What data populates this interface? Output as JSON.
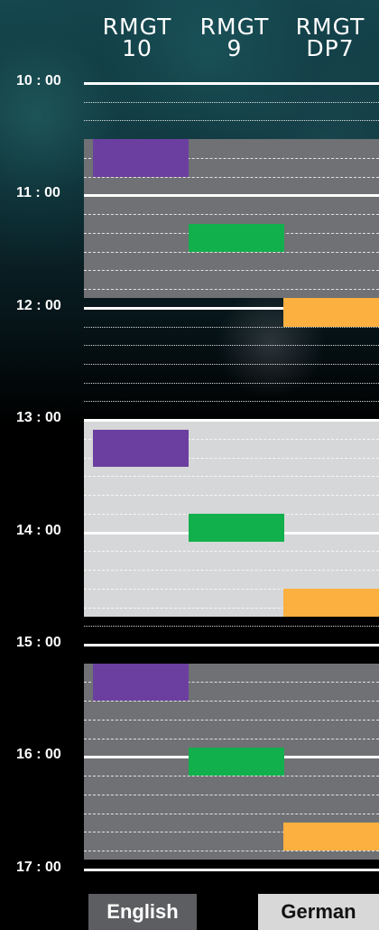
{
  "columns": [
    {
      "line1": "RMGT",
      "line2": "10"
    },
    {
      "line1": "RMGT",
      "line2": "9"
    },
    {
      "line1": "RMGT",
      "line2": "DP7"
    }
  ],
  "times": [
    "10 : 00",
    "11 : 00",
    "12 : 00",
    "13 : 00",
    "14 : 00",
    "15 : 00",
    "16 : 00",
    "17 : 00"
  ],
  "colors": {
    "purple": "#6b3fa0",
    "green": "#12b04d",
    "orange": "#fbb040",
    "session_dark": "#707174",
    "session_light": "#d6d7d8"
  },
  "sessions": [
    {
      "start": "10:30",
      "end": "11:55",
      "shade": "dark"
    },
    {
      "start": "13:00",
      "end": "14:45",
      "shade": "light"
    },
    {
      "start": "15:10",
      "end": "16:55",
      "shade": "dark"
    }
  ],
  "events": [
    {
      "machine": "RMGT 10",
      "start": "10:30",
      "end": "10:50",
      "color": "purple"
    },
    {
      "machine": "RMGT 9",
      "start": "11:15",
      "end": "11:30",
      "color": "green"
    },
    {
      "machine": "RMGT DP7",
      "start": "11:55",
      "end": "12:10",
      "color": "orange"
    },
    {
      "machine": "RMGT 10",
      "start": "13:05",
      "end": "13:25",
      "color": "purple"
    },
    {
      "machine": "RMGT 9",
      "start": "13:50",
      "end": "14:05",
      "color": "green"
    },
    {
      "machine": "RMGT DP7",
      "start": "14:30",
      "end": "14:45",
      "color": "orange"
    },
    {
      "machine": "RMGT 10",
      "start": "15:10",
      "end": "15:30",
      "color": "purple"
    },
    {
      "machine": "RMGT 9",
      "start": "15:55",
      "end": "16:10",
      "color": "green"
    },
    {
      "machine": "RMGT DP7",
      "start": "16:35",
      "end": "16:50",
      "color": "orange"
    }
  ],
  "language_buttons": {
    "english": "English",
    "german": "German"
  }
}
